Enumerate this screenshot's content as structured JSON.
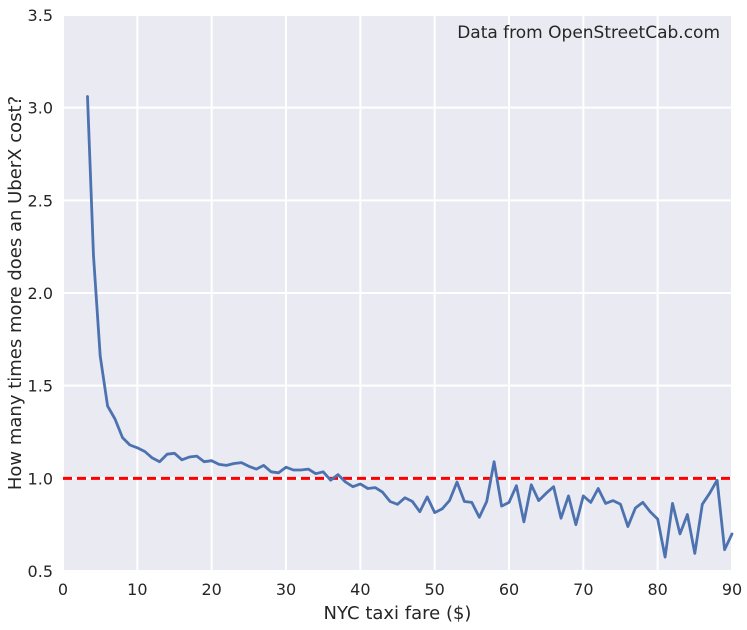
{
  "chart_data": {
    "type": "line",
    "xlabel": "NYC taxi fare ($)",
    "ylabel": "How many times more does an UberX cost?",
    "xlim": [
      0,
      90
    ],
    "ylim": [
      0.5,
      3.5
    ],
    "xticks": [
      "0",
      "10",
      "20",
      "30",
      "40",
      "50",
      "60",
      "70",
      "80",
      "90"
    ],
    "yticks": [
      "0.5",
      "1.0",
      "1.5",
      "2.0",
      "2.5",
      "3.0",
      "3.5"
    ],
    "grid": true,
    "annotation": "Data from OpenStreetCab.com",
    "reference_line": {
      "y": 1.0,
      "style": "dashed",
      "color": "#ff0000"
    },
    "series": [
      {
        "color": "#4c72b0",
        "x": [
          3.3,
          4.1,
          5,
          6,
          7,
          8,
          9,
          10,
          11,
          12,
          13,
          14,
          15,
          16,
          17,
          18,
          19,
          20,
          21,
          22,
          23,
          24,
          25,
          26,
          27,
          28,
          29,
          30,
          31,
          32,
          33,
          34,
          35,
          36,
          37,
          38,
          39,
          40,
          41,
          42,
          43,
          44,
          45,
          46,
          47,
          48,
          49,
          50,
          51,
          52,
          53,
          54,
          55,
          56,
          57,
          58,
          59,
          60,
          61,
          62,
          63,
          64,
          65,
          66,
          67,
          68,
          69,
          70,
          71,
          72,
          73,
          74,
          75,
          76,
          77,
          78,
          79,
          80,
          81,
          82,
          83,
          84,
          85,
          86,
          87,
          88,
          89,
          90
        ],
        "y": [
          3.06,
          2.2,
          1.66,
          1.39,
          1.32,
          1.22,
          1.18,
          1.165,
          1.145,
          1.11,
          1.09,
          1.13,
          1.135,
          1.1,
          1.115,
          1.12,
          1.09,
          1.095,
          1.075,
          1.07,
          1.08,
          1.085,
          1.065,
          1.05,
          1.07,
          1.035,
          1.03,
          1.06,
          1.045,
          1.045,
          1.05,
          1.025,
          1.035,
          0.99,
          1.02,
          0.98,
          0.955,
          0.97,
          0.945,
          0.95,
          0.925,
          0.875,
          0.86,
          0.895,
          0.875,
          0.82,
          0.9,
          0.815,
          0.835,
          0.88,
          0.98,
          0.875,
          0.87,
          0.79,
          0.875,
          1.09,
          0.85,
          0.87,
          0.96,
          0.765,
          0.965,
          0.88,
          0.92,
          0.955,
          0.785,
          0.905,
          0.75,
          0.905,
          0.87,
          0.945,
          0.865,
          0.88,
          0.86,
          0.74,
          0.84,
          0.87,
          0.82,
          0.78,
          0.575,
          0.865,
          0.7,
          0.805,
          0.595,
          0.86,
          0.92,
          0.99,
          0.615,
          0.7
        ]
      }
    ]
  },
  "colors": {
    "plot_background": "#eaeaf2",
    "grid": "#ffffff",
    "line": "#4c72b0",
    "reference": "#ff0000"
  }
}
